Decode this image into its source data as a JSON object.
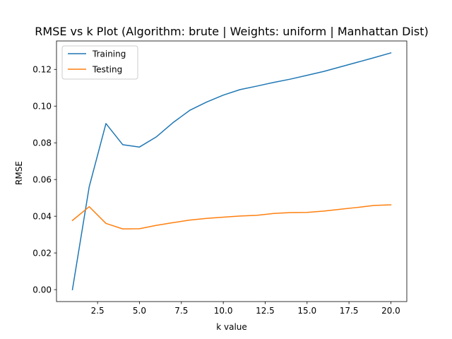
{
  "chart_data": {
    "type": "line",
    "title": "RMSE vs k Plot (Algorithm: brute | Weights: uniform | Manhattan Dist)",
    "xlabel": "k value",
    "ylabel": "RMSE",
    "xlim": [
      0.05,
      20.95
    ],
    "ylim": [
      -0.0065,
      0.1355
    ],
    "x": [
      1,
      2,
      3,
      4,
      5,
      6,
      7,
      8,
      9,
      10,
      11,
      12,
      13,
      14,
      15,
      16,
      17,
      18,
      19,
      20
    ],
    "xticks": [
      2.5,
      5.0,
      7.5,
      10.0,
      12.5,
      15.0,
      17.5,
      20.0
    ],
    "xtick_labels": [
      "2.5",
      "5.0",
      "7.5",
      "10.0",
      "12.5",
      "15.0",
      "17.5",
      "20.0"
    ],
    "yticks": [
      0.0,
      0.02,
      0.04,
      0.06,
      0.08,
      0.1,
      0.12
    ],
    "ytick_labels": [
      "0.00",
      "0.02",
      "0.04",
      "0.06",
      "0.08",
      "0.10",
      "0.12"
    ],
    "grid": false,
    "legend_position": "top-left",
    "series": [
      {
        "name": "Training",
        "color": "#1f77b4",
        "values": [
          0.0,
          0.056,
          0.0905,
          0.079,
          0.0777,
          0.0832,
          0.091,
          0.0977,
          0.1022,
          0.106,
          0.109,
          0.1109,
          0.1129,
          0.1147,
          0.1168,
          0.1189,
          0.1214,
          0.1239,
          0.1264,
          0.129
        ]
      },
      {
        "name": "Testing",
        "color": "#ff7f0e",
        "values": [
          0.0377,
          0.0452,
          0.0361,
          0.0331,
          0.0332,
          0.035,
          0.0365,
          0.0379,
          0.0388,
          0.0395,
          0.0401,
          0.0405,
          0.0415,
          0.042,
          0.0421,
          0.0428,
          0.0438,
          0.0448,
          0.0459,
          0.0462
        ]
      }
    ]
  }
}
